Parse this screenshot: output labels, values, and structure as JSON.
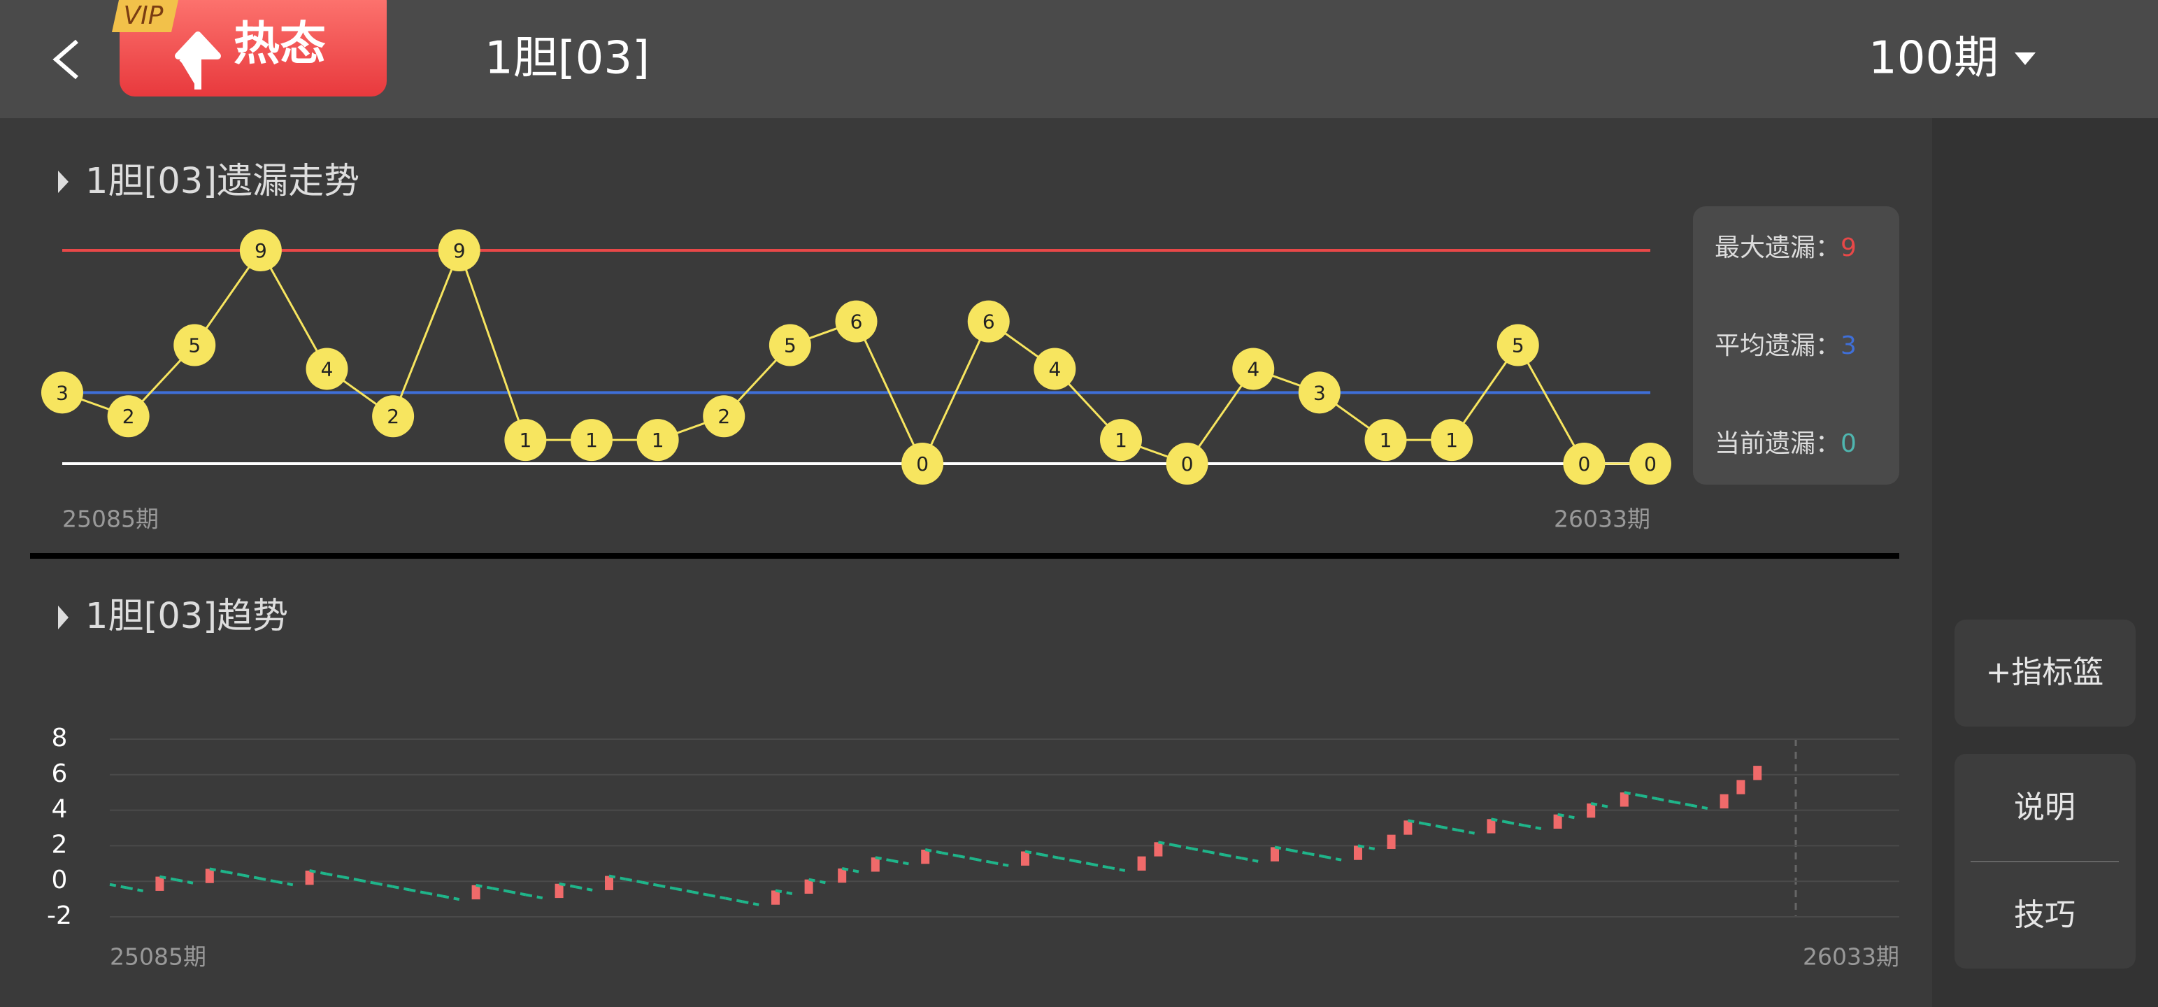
{
  "header": {
    "vip_badge": "VIP",
    "hot_button": "热态",
    "title": "1胆[03]",
    "period_selector": "100期"
  },
  "chart_data": [
    {
      "type": "line",
      "title": "1胆[03]遗漏走势",
      "color": "#f7e55f",
      "zero_color": "#ffffff",
      "values": [
        3,
        2,
        5,
        9,
        4,
        2,
        9,
        1,
        1,
        1,
        2,
        5,
        6,
        0,
        6,
        4,
        1,
        0,
        4,
        3,
        1,
        1,
        5,
        0,
        0
      ],
      "x_labels": [
        "25085期",
        "26033期"
      ],
      "stats": [
        {
          "label": "最大遗漏：",
          "value": 9,
          "color": "#e84848"
        },
        {
          "label": "平均遗漏：",
          "value": 3,
          "color": "#3f6fd8"
        },
        {
          "label": "当前遗漏：",
          "value": 0,
          "color": "#4fb6b0"
        }
      ]
    },
    {
      "type": "candlestick",
      "title": "1胆[03]趋势",
      "up_color": "#f06a6a",
      "down_color": "#1fb58a",
      "grid": true,
      "ylim": [
        -2,
        8
      ],
      "yticks": [
        -2,
        0,
        2,
        4,
        6,
        8
      ],
      "x_labels": [
        "25085期",
        "26033期"
      ],
      "values": [
        -0.18,
        -0.36,
        -0.54,
        0.26,
        0.08,
        -0.1,
        0.7,
        0.52,
        0.34,
        0.16,
        -0.02,
        -0.2,
        0.6,
        0.42,
        0.24,
        0.06,
        -0.12,
        -0.3,
        -0.48,
        -0.66,
        -0.84,
        -1.02,
        -0.22,
        -0.4,
        -0.58,
        -0.76,
        -0.94,
        -0.14,
        -0.32,
        -0.5,
        0.3,
        0.12,
        -0.06,
        -0.24,
        -0.42,
        -0.6,
        -0.78,
        -0.96,
        -1.14,
        -1.32,
        -0.52,
        -0.7,
        0.1,
        -0.08,
        0.72,
        0.54,
        1.34,
        1.16,
        0.98,
        1.78,
        1.6,
        1.42,
        1.24,
        1.06,
        0.88,
        1.68,
        1.5,
        1.32,
        1.14,
        0.96,
        0.78,
        0.6,
        1.4,
        2.2,
        2.02,
        1.84,
        1.66,
        1.48,
        1.3,
        1.12,
        1.92,
        1.74,
        1.56,
        1.38,
        1.2,
        2.0,
        1.82,
        2.62,
        3.42,
        3.24,
        3.06,
        2.88,
        2.7,
        3.5,
        3.32,
        3.14,
        2.96,
        3.76,
        3.58,
        4.38,
        4.2,
        5.0,
        4.82,
        4.64,
        4.46,
        4.28,
        4.1,
        4.9,
        5.7,
        6.5
      ]
    }
  ],
  "sidebar": {
    "basket_button": "+指标篮",
    "explain_button": "说明",
    "tips_button": "技巧"
  }
}
